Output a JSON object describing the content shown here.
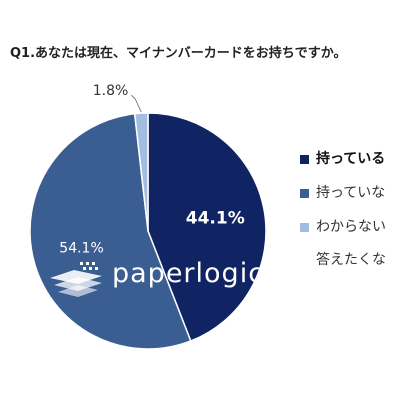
{
  "title": "Q1.あなたは現在、マイナンバーカードをお持ちですか。",
  "logo": {
    "text": "paperlogic"
  },
  "chart_data": {
    "type": "pie",
    "title": "Q1.あなたは現在、マイナンバーカードをお持ちですか。",
    "slices": [
      {
        "label": "持っている",
        "value": 44.1,
        "display": "44.1%",
        "color": "#102463"
      },
      {
        "label": "持っていない",
        "value": 54.1,
        "display": "54.1%",
        "color": "#3a5d92"
      },
      {
        "label": "わからない／答えたくない",
        "value": 1.8,
        "display": "1.8%",
        "color": "#a2bde0"
      }
    ],
    "legend_position": "right",
    "legend": [
      {
        "label": "持っている",
        "color": "#102463",
        "bold": true
      },
      {
        "label": "持っていな",
        "color": "#3a5d92"
      },
      {
        "label": "わからない",
        "color": "#a2bde0"
      },
      {
        "label": "答えたくな",
        "color": null
      }
    ]
  }
}
